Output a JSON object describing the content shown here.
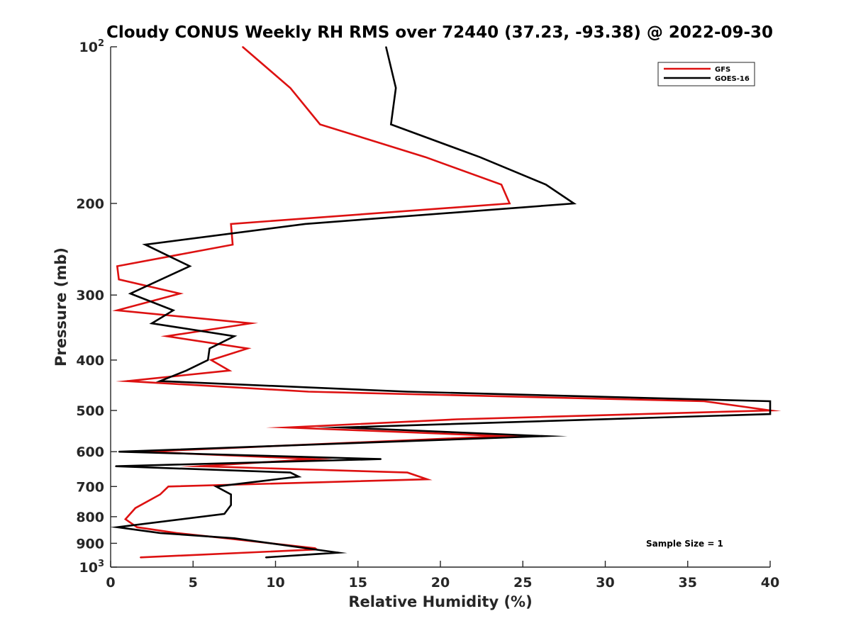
{
  "chart_data": {
    "type": "line",
    "title": "Cloudy CONUS Weekly RH RMS over 72440 (37.23, -93.38) @ 2022-09-30",
    "xlabel": "Relative Humidity (%)",
    "ylabel": "Pressure (mb)",
    "xlim": [
      0,
      40
    ],
    "ylim": [
      100,
      1000
    ],
    "yscale": "log",
    "y_reversed": true,
    "grid": false,
    "xticks": [
      0,
      5,
      10,
      15,
      20,
      25,
      30,
      35,
      40
    ],
    "yticks": [
      100,
      200,
      300,
      400,
      500,
      600,
      700,
      800,
      900,
      1000
    ],
    "ytick_labels": {
      "100": {
        "base": "10",
        "exp": "2"
      },
      "200": "200",
      "300": "300",
      "400": "400",
      "500": "500",
      "600": "600",
      "700": "700",
      "800": "800",
      "900": "900",
      "1000": {
        "base": "10",
        "exp": "3"
      }
    },
    "legend": {
      "location": "top-right",
      "entries": [
        "GFS",
        "GOES-16"
      ]
    },
    "annotations": [
      {
        "text": "Sample Size = 1",
        "x": 34.8,
        "y": 936
      }
    ],
    "series": [
      {
        "name": "GFS",
        "color": "#dd1111",
        "points": [
          [
            8.0,
            100
          ],
          [
            10.9,
            120
          ],
          [
            12.7,
            141
          ],
          [
            19.1,
            163
          ],
          [
            23.7,
            184
          ],
          [
            24.2,
            200
          ],
          [
            7.3,
            219
          ],
          [
            7.4,
            240
          ],
          [
            0.4,
            264
          ],
          [
            0.5,
            280
          ],
          [
            4.2,
            298
          ],
          [
            0.4,
            321
          ],
          [
            8.5,
            340
          ],
          [
            3.4,
            360
          ],
          [
            8.3,
            380
          ],
          [
            6.1,
            400
          ],
          [
            7.2,
            419
          ],
          [
            1.0,
            439
          ],
          [
            12.0,
            460
          ],
          [
            36.0,
            480
          ],
          [
            40.0,
            500
          ],
          [
            21.0,
            520
          ],
          [
            10.7,
            539
          ],
          [
            23.9,
            560
          ],
          [
            2.0,
            600
          ],
          [
            12.4,
            620
          ],
          [
            5.4,
            640
          ],
          [
            18.0,
            658
          ],
          [
            19.2,
            678
          ],
          [
            3.5,
            700
          ],
          [
            3.0,
            725
          ],
          [
            1.5,
            770
          ],
          [
            0.9,
            809
          ],
          [
            1.6,
            838
          ],
          [
            4.0,
            860
          ],
          [
            7.0,
            880
          ],
          [
            12.4,
            920
          ],
          [
            12.5,
            925
          ],
          [
            1.8,
            958
          ]
        ]
      },
      {
        "name": "GOES-16",
        "color": "#000000",
        "points": [
          [
            16.7,
            100
          ],
          [
            17.3,
            120
          ],
          [
            17.0,
            141
          ],
          [
            22.4,
            163
          ],
          [
            26.4,
            184
          ],
          [
            28.1,
            200
          ],
          [
            11.8,
            219
          ],
          [
            2.1,
            240
          ],
          [
            4.8,
            264
          ],
          [
            1.2,
            298
          ],
          [
            3.8,
            321
          ],
          [
            2.5,
            340
          ],
          [
            7.5,
            360
          ],
          [
            6.0,
            380
          ],
          [
            5.9,
            400
          ],
          [
            4.6,
            419
          ],
          [
            3.0,
            439
          ],
          [
            18.0,
            460
          ],
          [
            40.0,
            480
          ],
          [
            40.0,
            508
          ],
          [
            14.0,
            539
          ],
          [
            26.3,
            560
          ],
          [
            0.5,
            600
          ],
          [
            16.4,
            620
          ],
          [
            0.3,
            640
          ],
          [
            10.9,
            658
          ],
          [
            11.4,
            670
          ],
          [
            6.4,
            700
          ],
          [
            7.3,
            725
          ],
          [
            7.3,
            760
          ],
          [
            6.9,
            790
          ],
          [
            0.4,
            838
          ],
          [
            3.0,
            860
          ],
          [
            7.5,
            880
          ],
          [
            13.8,
            938
          ],
          [
            9.4,
            958
          ]
        ]
      }
    ]
  }
}
